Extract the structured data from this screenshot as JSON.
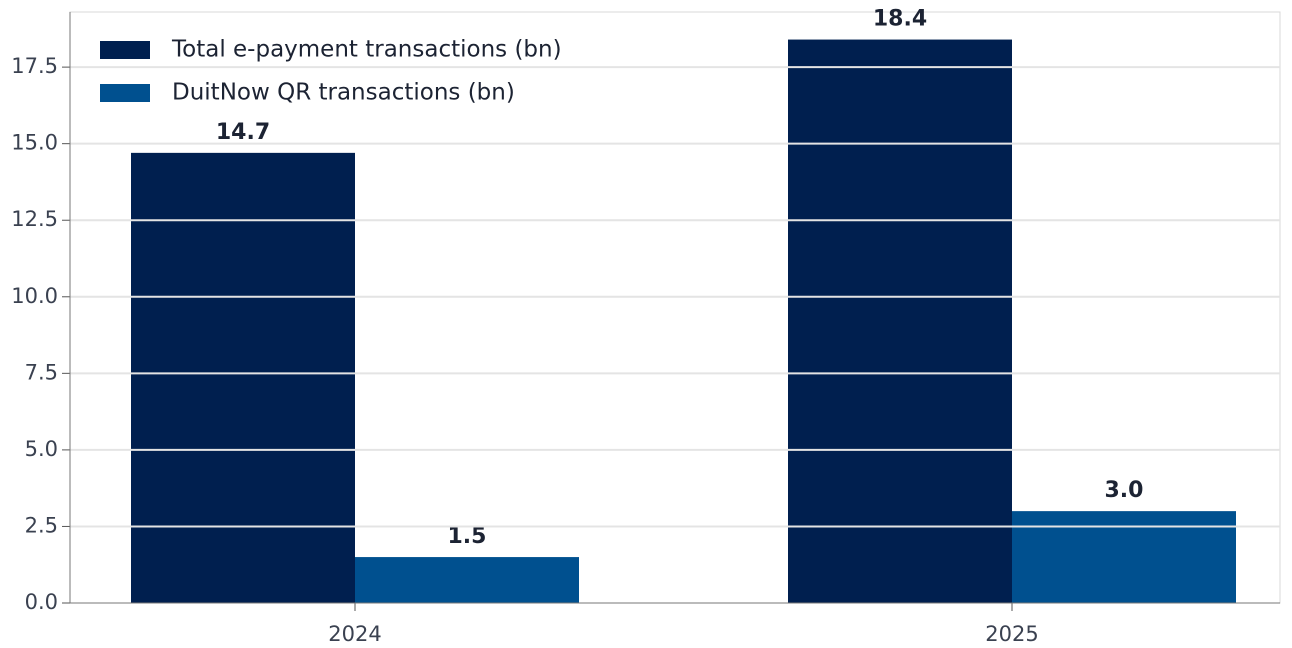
{
  "chart_data": {
    "type": "bar",
    "categories": [
      "2024",
      "2025"
    ],
    "series": [
      {
        "name": "Total e-payment transactions (bn)",
        "color": "#001f4f",
        "values": [
          14.7,
          18.4
        ],
        "value_labels": [
          "14.7",
          "18.4"
        ]
      },
      {
        "name": "DuitNow QR transactions (bn)",
        "color": "#00508f",
        "values": [
          1.5,
          3.0
        ],
        "value_labels": [
          "1.5",
          "3.0"
        ]
      }
    ],
    "ylim": [
      0,
      19.3
    ],
    "yticks": [
      {
        "value": 0,
        "label": "0.0"
      },
      2.5,
      {
        "value": 5,
        "label": "5.0"
      },
      7.5,
      {
        "value": 10,
        "label": "10.0"
      },
      12.5,
      {
        "value": 15,
        "label": "15.0"
      },
      17.5
    ],
    "grid": true,
    "legend": "upper left"
  }
}
